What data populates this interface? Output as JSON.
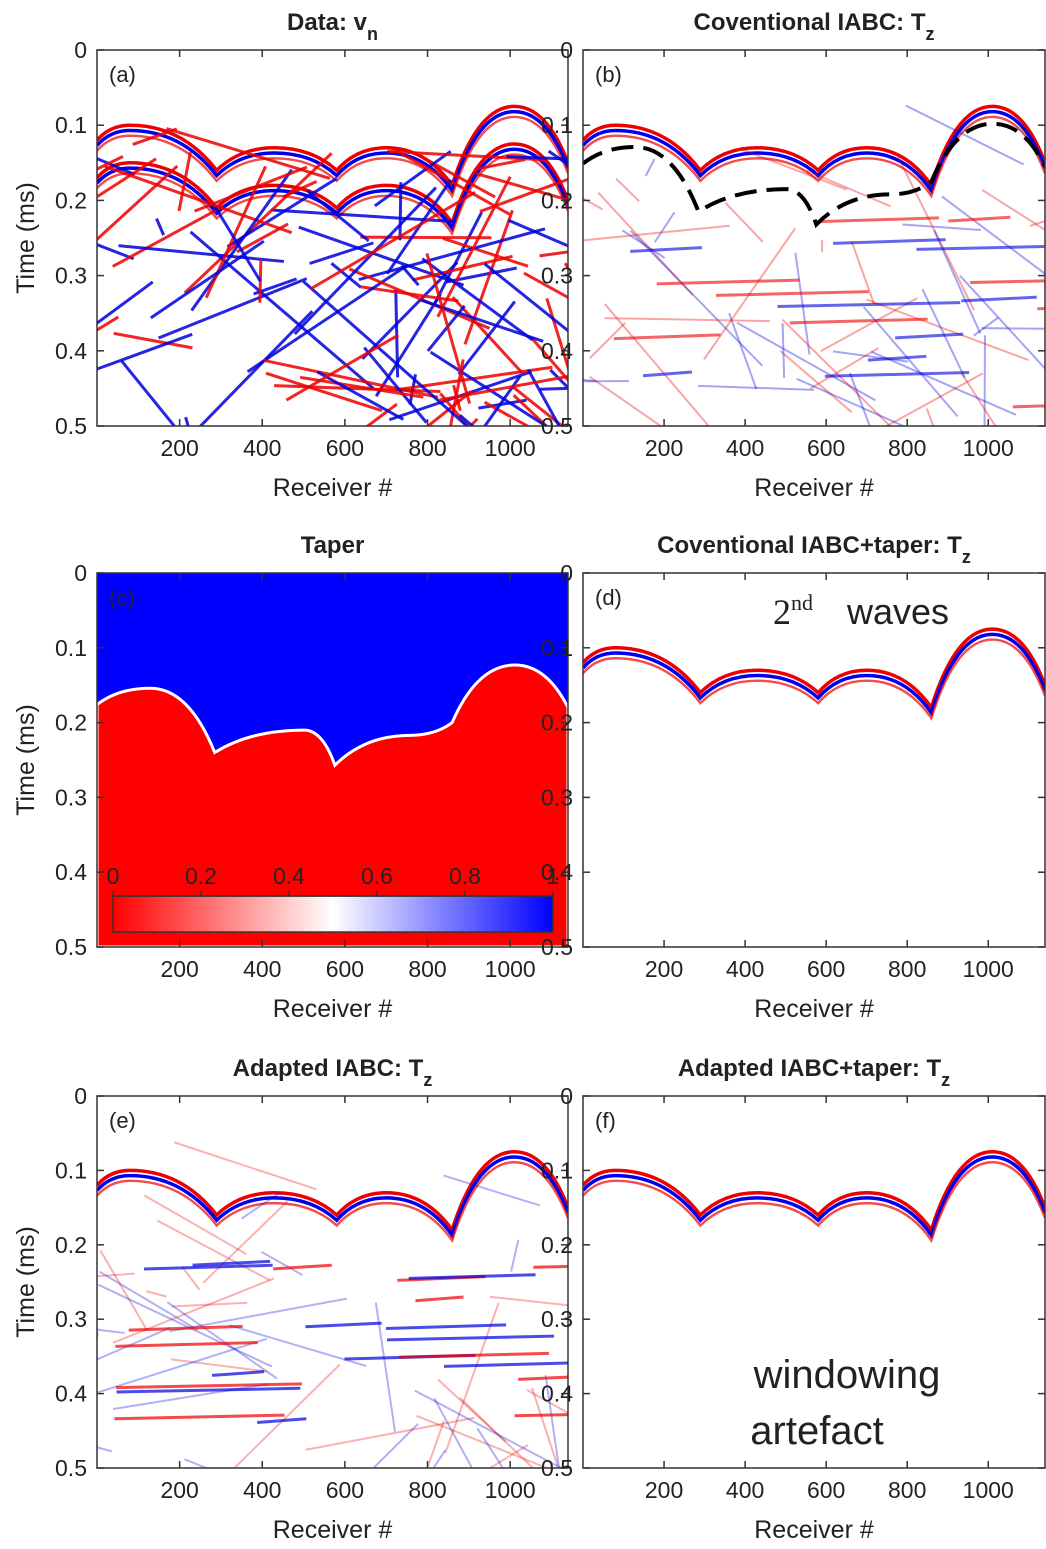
{
  "chart_data": [
    {
      "type": "image",
      "title": "Data: v",
      "title_subscript": "n",
      "panel_label": "(a)",
      "xlabel": "Receiver #",
      "ylabel": "Time (ms)",
      "xlim": [
        0,
        1140
      ],
      "xticks": [
        200,
        400,
        600,
        800,
        1000
      ],
      "ylim": [
        0,
        0.5
      ],
      "yticks": [
        0,
        0.1,
        0.2,
        0.3,
        0.4,
        0.5
      ],
      "y_reversed": true
    },
    {
      "type": "image",
      "title": "Coventional IABC: T",
      "title_subscript": "z",
      "panel_label": "(b)",
      "xlabel": "Receiver #",
      "xlim": [
        0,
        1140
      ],
      "xticks": [
        200,
        400,
        600,
        800,
        1000
      ],
      "ylim": [
        0,
        0.5
      ],
      "yticks": [
        0,
        0.1,
        0.2,
        0.3,
        0.4,
        0.5
      ],
      "y_reversed": true
    },
    {
      "type": "image",
      "title": "Taper",
      "panel_label": "(c)",
      "xlabel": "Receiver #",
      "ylabel": "Time (ms)",
      "xlim": [
        0,
        1140
      ],
      "xticks": [
        200,
        400,
        600,
        800,
        1000
      ],
      "ylim": [
        0,
        0.5
      ],
      "yticks": [
        0,
        0.1,
        0.2,
        0.3,
        0.4,
        0.5
      ],
      "y_reversed": true,
      "colorbar": {
        "lim": [
          0,
          1
        ],
        "ticks": [
          0,
          0.2,
          0.4,
          0.6,
          0.8,
          1
        ],
        "colors": [
          "#ff0000",
          "#ffffff",
          "#0000ff"
        ]
      }
    },
    {
      "type": "image",
      "title": "Coventional IABC+taper: T",
      "title_subscript": "z",
      "panel_label": "(d)",
      "xlabel": "Receiver #",
      "xlim": [
        0,
        1140
      ],
      "xticks": [
        200,
        400,
        600,
        800,
        1000
      ],
      "ylim": [
        0,
        0.5
      ],
      "yticks": [
        0,
        0.1,
        0.2,
        0.3,
        0.4,
        0.5
      ],
      "y_reversed": true,
      "annotation": {
        "base": "2",
        "superscript": "nd",
        "text": "waves"
      }
    },
    {
      "type": "image",
      "title": "Adapted IABC: T",
      "title_subscript": "z",
      "panel_label": "(e)",
      "xlabel": "Receiver #",
      "ylabel": "Time (ms)",
      "xlim": [
        0,
        1140
      ],
      "xticks": [
        200,
        400,
        600,
        800,
        1000
      ],
      "ylim": [
        0,
        0.5
      ],
      "yticks": [
        0,
        0.1,
        0.2,
        0.3,
        0.4,
        0.5
      ],
      "y_reversed": true
    },
    {
      "type": "image",
      "title": "Adapted IABC+taper: T",
      "title_subscript": "z",
      "panel_label": "(f)",
      "xlabel": "Receiver #",
      "xlim": [
        0,
        1140
      ],
      "xticks": [
        200,
        400,
        600,
        800,
        1000
      ],
      "ylim": [
        0,
        0.5
      ],
      "yticks": [
        0,
        0.1,
        0.2,
        0.3,
        0.4,
        0.5
      ],
      "y_reversed": true,
      "annotation_lines": [
        "windowing",
        "artefact"
      ]
    }
  ]
}
